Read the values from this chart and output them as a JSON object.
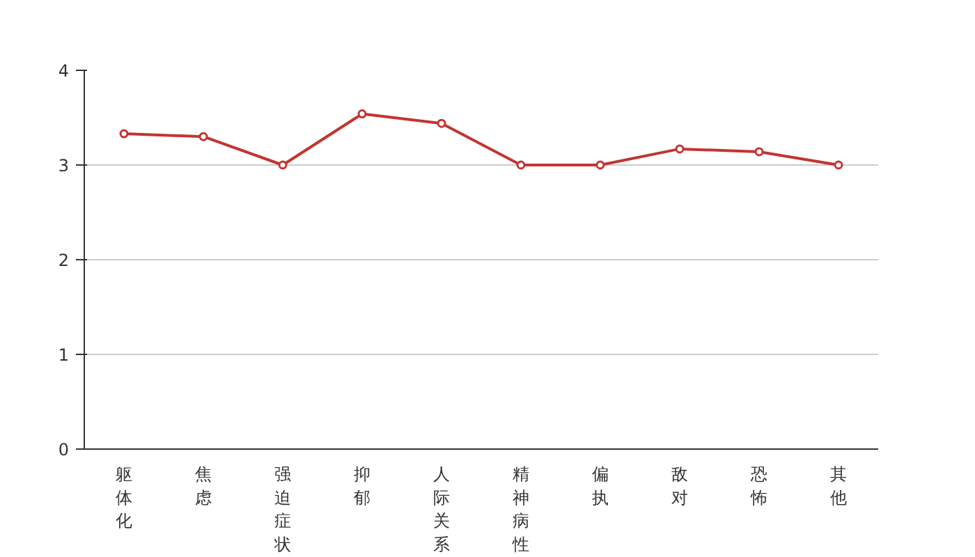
{
  "chart_data": {
    "type": "line",
    "categories": [
      "躯体化",
      "焦虑",
      "强迫症状",
      "抑郁",
      "人际关系",
      "精神病性",
      "偏执",
      "敌对",
      "恐怖",
      "其他"
    ],
    "series": [
      {
        "color": "#c23531",
        "values": [
          3.33,
          3.3,
          3.0,
          3.54,
          3.44,
          3.0,
          3.0,
          3.17,
          3.14,
          3.0
        ]
      }
    ],
    "ylim": [
      0,
      4
    ],
    "yticks": [
      0,
      1,
      2,
      3,
      4
    ],
    "grid": "y",
    "marker": "circle",
    "line_style": "solid"
  }
}
